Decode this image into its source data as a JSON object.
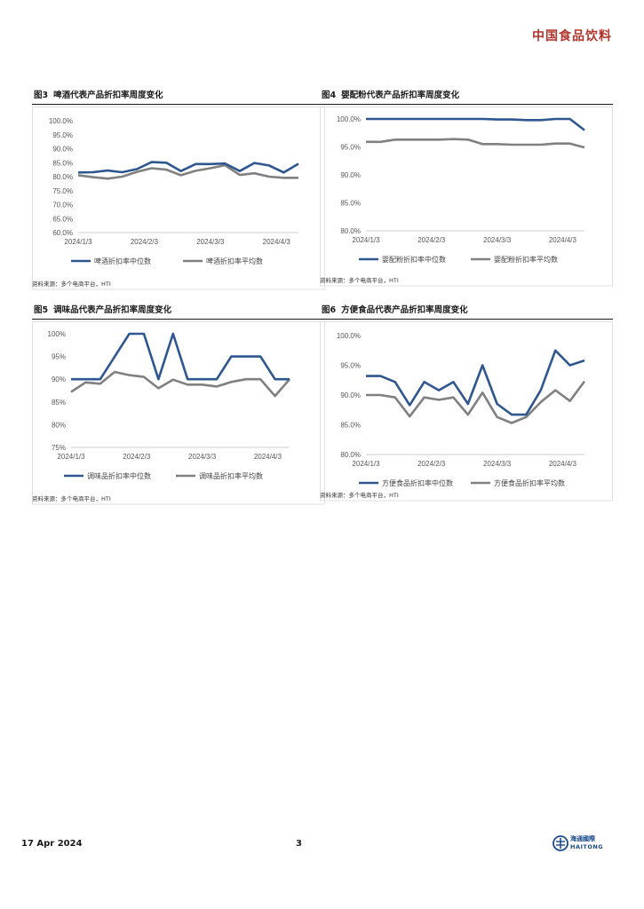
{
  "header": {
    "title": "中国食品饮料"
  },
  "footer": {
    "date": "17 Apr 2024",
    "page": "3"
  },
  "logo": {
    "cn": "海通國際",
    "en": "HAITONG"
  },
  "colors": {
    "median": "#2e568f",
    "average": "#808080",
    "brand": "#b0342a"
  },
  "charts": [
    {
      "fig": "图3",
      "title": "啤酒代表产品折扣率周度变化",
      "source": "资料来源：多个电商平台，HTI",
      "chart_data": {
        "type": "line",
        "x_tick_labels": [
          "2024/1/3",
          "2024/2/3",
          "2024/3/3",
          "2024/4/3"
        ],
        "y_tick_labels": [
          "100.0%",
          "95.0%",
          "90.0%",
          "85.0%",
          "80.0%",
          "75.0%",
          "70.0%",
          "65.0%",
          "60.0%"
        ],
        "ylim": [
          60,
          100
        ],
        "series": [
          {
            "name": "啤酒折扣率中位数",
            "values": [
              81.5,
              81.6,
              82.2,
              81.6,
              82.7,
              85.2,
              85.0,
              82.0,
              84.5,
              84.5,
              84.7,
              82.0,
              84.9,
              84.0,
              81.5,
              84.6
            ]
          },
          {
            "name": "啤酒折扣率平均数",
            "values": [
              80.5,
              79.8,
              79.3,
              80.0,
              81.7,
              83.0,
              82.5,
              80.5,
              82.1,
              83.0,
              84.1,
              80.6,
              81.2,
              80.0,
              79.6,
              79.6
            ]
          }
        ]
      }
    },
    {
      "fig": "图4",
      "title": "婴配粉代表产品折扣率周度变化",
      "source": "资料来源：多个电商平台，HTI",
      "chart_data": {
        "type": "line",
        "x_tick_labels": [
          "2024/1/3",
          "2024/2/3",
          "2024/3/3",
          "2024/4/3"
        ],
        "y_tick_labels": [
          "100.0%",
          "95.0%",
          "90.0%",
          "85.0%",
          "80.0%"
        ],
        "ylim": [
          80,
          100
        ],
        "series": [
          {
            "name": "婴配粉折扣率中位数",
            "values": [
              100.0,
              100.0,
              100.0,
              100.0,
              100.0,
              100.0,
              100.0,
              100.0,
              100.0,
              99.9,
              99.9,
              99.8,
              99.8,
              100.0,
              100.0,
              98.0
            ]
          },
          {
            "name": "婴配粉折扣率平均数",
            "values": [
              95.9,
              95.9,
              96.3,
              96.3,
              96.3,
              96.3,
              96.4,
              96.3,
              95.5,
              95.5,
              95.4,
              95.4,
              95.4,
              95.6,
              95.6,
              94.9
            ]
          }
        ]
      }
    },
    {
      "fig": "图5",
      "title": "调味品代表产品折扣率周度变化",
      "source": "资料来源：多个电商平台，HTI",
      "chart_data": {
        "type": "line",
        "x_tick_labels": [
          "2024/1/3",
          "2024/2/3",
          "2024/3/3",
          "2024/4/3"
        ],
        "y_tick_labels": [
          "100%",
          "95%",
          "90%",
          "85%",
          "80%",
          "75%"
        ],
        "ylim": [
          75,
          100
        ],
        "series": [
          {
            "name": "调味品折扣率中位数",
            "values": [
              90,
              90,
              90,
              95,
              100,
              100,
              90,
              100,
              90,
              90,
              90,
              95,
              95,
              95,
              90,
              90
            ]
          },
          {
            "name": "调味品折扣率平均数",
            "values": [
              87.2,
              89.3,
              89.0,
              91.6,
              90.9,
              90.5,
              88.0,
              89.9,
              88.8,
              88.8,
              88.4,
              89.4,
              90.0,
              90.0,
              86.3,
              90.0
            ]
          }
        ]
      }
    },
    {
      "fig": "图6",
      "title": "方便食品代表产品折扣率周度变化",
      "source": "资料来源：多个电商平台，HTI",
      "chart_data": {
        "type": "line",
        "x_tick_labels": [
          "2024/1/3",
          "2024/2/3",
          "2024/3/3",
          "2024/4/3"
        ],
        "y_tick_labels": [
          "100.0%",
          "95.0%",
          "90.0%",
          "85.0%",
          "80.0%"
        ],
        "ylim": [
          80,
          100
        ],
        "series": [
          {
            "name": "方便食品折扣率中位数",
            "values": [
              93.2,
              93.2,
              92.2,
              88.3,
              92.2,
              90.8,
              92.2,
              88.5,
              95.0,
              88.5,
              86.7,
              86.7,
              90.8,
              97.5,
              95.0,
              95.8
            ]
          },
          {
            "name": "方便食品折扣率平均数",
            "values": [
              90.0,
              90.0,
              89.6,
              86.4,
              89.6,
              89.2,
              89.6,
              86.7,
              90.4,
              86.3,
              85.3,
              86.3,
              88.8,
              90.8,
              89.0,
              92.3
            ]
          }
        ]
      }
    }
  ]
}
